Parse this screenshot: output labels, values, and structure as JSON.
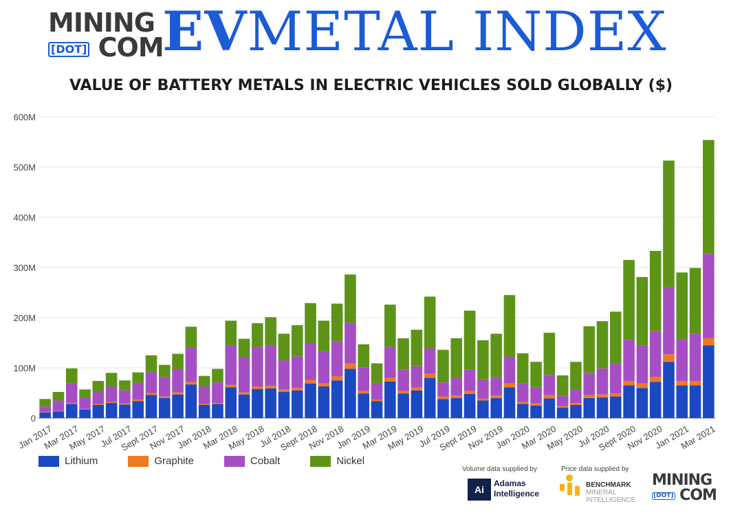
{
  "header": {
    "logo_line1": "MINING",
    "logo_dot": "[DOT]",
    "logo_com": "COM",
    "index_title_ev": "EV",
    "index_title_rest": "METAL INDEX"
  },
  "colors": {
    "lithium": "#1a49c2",
    "graphite": "#ee7a22",
    "cobalt": "#a64fc4",
    "nickel": "#5d9418",
    "brand_blue": "#1a5bd6"
  },
  "chart_data": {
    "type": "bar",
    "stacked": true,
    "title": "VALUE OF BATTERY METALS IN ELECTRIC VEHICLES SOLD GLOBALLY ($)",
    "xlabel": "",
    "ylabel": "",
    "ylim": [
      0,
      600000000
    ],
    "yticks": [
      0,
      100000000,
      200000000,
      300000000,
      400000000,
      500000000,
      600000000
    ],
    "ytick_labels": [
      "0",
      "100M",
      "200M",
      "300M",
      "400M",
      "500M",
      "600M"
    ],
    "grid": true,
    "legend_position": "bottom-left",
    "categories": [
      "Jan 2017",
      "Feb 2017",
      "Mar 2017",
      "Apr 2017",
      "May 2017",
      "Jun 2017",
      "Jul 2017",
      "Aug 2017",
      "Sept 2017",
      "Oct 2017",
      "Nov 2017",
      "Dec 2017",
      "Jan 2018",
      "Feb 2018",
      "Mar 2018",
      "Apr 2018",
      "May 2018",
      "Jun 2018",
      "Jul 2018",
      "Aug 2018",
      "Sept 2018",
      "Oct 2018",
      "Nov 2018",
      "Dec 2018",
      "Jan 2019",
      "Feb 2019",
      "Mar 2019",
      "Apr 2019",
      "May 2019",
      "Jun 2019",
      "Jul 2019",
      "Aug 2019",
      "Sept 2019",
      "Oct 2019",
      "Nov 2019",
      "Dec 2019",
      "Jan 2020",
      "Feb 2020",
      "Mar 2020",
      "Apr 2020",
      "May 2020",
      "Jun 2020",
      "Jul 2020",
      "Aug 2020",
      "Sept 2020",
      "Oct 2020",
      "Nov 2020",
      "Dec 2020",
      "Jan 2021",
      "Feb 2021",
      "Mar 2021"
    ],
    "tick_labels": [
      "Jan 2017",
      "Mar 2017",
      "May 2017",
      "Jul 2017",
      "Sept 2017",
      "Nov 2017",
      "Jan 2018",
      "Mar 2018",
      "May 2018",
      "Jul 2018",
      "Sept 2018",
      "Nov 2018",
      "Jan 2019",
      "Mar 2019",
      "May 2019",
      "Jul 2019",
      "Sept 2019",
      "Nov 2019",
      "Jan 2020",
      "Mar 2020",
      "May 2020",
      "Jul 2020",
      "Sept 2020",
      "Nov 2020",
      "Jan 2021",
      "Mar 2021"
    ],
    "series": [
      {
        "name": "Lithium",
        "color": "#1a49c2",
        "values": [
          11,
          13,
          28,
          17,
          26,
          30,
          27,
          34,
          46,
          40,
          47,
          67,
          26,
          28,
          61,
          47,
          58,
          59,
          52,
          55,
          69,
          63,
          75,
          98,
          49,
          34,
          73,
          49,
          55,
          80,
          38,
          40,
          48,
          35,
          40,
          61,
          28,
          25,
          39,
          21,
          26,
          40,
          41,
          43,
          65,
          60,
          72,
          112,
          65,
          65,
          145
        ]
      },
      {
        "name": "Graphite",
        "color": "#ee7a22",
        "values": [
          1,
          1,
          2,
          1,
          2,
          2,
          2,
          3,
          4,
          3,
          4,
          5,
          2,
          2,
          5,
          4,
          5,
          5,
          5,
          5,
          7,
          6,
          8,
          11,
          5,
          3,
          7,
          5,
          6,
          9,
          5,
          5,
          6,
          4,
          5,
          8,
          4,
          4,
          7,
          3,
          4,
          6,
          6,
          6,
          9,
          9,
          10,
          15,
          9,
          9,
          14
        ]
      },
      {
        "name": "Cobalt",
        "color": "#a64fc4",
        "values": [
          11,
          21,
          39,
          23,
          24,
          31,
          26,
          33,
          41,
          39,
          47,
          69,
          35,
          41,
          79,
          71,
          79,
          80,
          58,
          63,
          72,
          64,
          70,
          81,
          47,
          33,
          62,
          43,
          42,
          50,
          28,
          35,
          43,
          38,
          36,
          53,
          37,
          33,
          40,
          20,
          26,
          44,
          52,
          59,
          82,
          76,
          91,
          132,
          83,
          94,
          168
        ]
      },
      {
        "name": "Nickel",
        "color": "#5d9418",
        "values": [
          15,
          17,
          30,
          16,
          22,
          27,
          20,
          21,
          34,
          24,
          30,
          41,
          21,
          27,
          49,
          36,
          47,
          57,
          53,
          62,
          81,
          61,
          75,
          96,
          46,
          39,
          84,
          62,
          73,
          103,
          65,
          79,
          117,
          78,
          87,
          123,
          60,
          50,
          84,
          41,
          56,
          93,
          94,
          104,
          159,
          136,
          160,
          254,
          133,
          131,
          227
        ]
      }
    ]
  },
  "footer": {
    "volume_label": "Volume data supplied by",
    "adamas_badge": "Ai",
    "adamas_line1": "Adamas",
    "adamas_line2": "Intelligence",
    "price_label": "Price data supplied by",
    "bench_line1": "BENCHMARK",
    "bench_line2": "MINERAL",
    "bench_line3": "INTELLIGENCE",
    "logo_line1": "MINING",
    "logo_dot": "[DOT]",
    "logo_com": "COM"
  }
}
